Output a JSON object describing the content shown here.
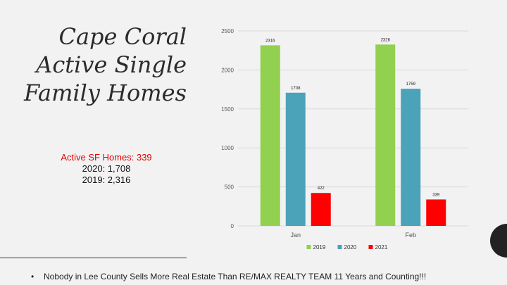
{
  "slide": {
    "title_lines": [
      "Cape Coral",
      "Active Single",
      "Family Homes"
    ],
    "stats": {
      "active_label": "Active SF Homes: 339",
      "line_2020": "2020: 1,708",
      "line_2019": "2019: 2,316"
    },
    "footer_bullet": "•",
    "footer": "Nobody in Lee County Sells More Real Estate Than RE/MAX REALTY  TEAM  11 Years and Counting!!!"
  },
  "chart_data": {
    "type": "bar",
    "categories": [
      "Jan",
      "Feb"
    ],
    "series": [
      {
        "name": "2019",
        "color": "#92d050",
        "values": [
          2316,
          2326
        ]
      },
      {
        "name": "2020",
        "color": "#4aa3b8",
        "values": [
          1708,
          1759
        ]
      },
      {
        "name": "2021",
        "color": "#ff0000",
        "values": [
          422,
          339
        ]
      }
    ],
    "ylim": [
      0,
      2500
    ],
    "yticks": [
      0,
      500,
      1000,
      1500,
      2000,
      2500
    ],
    "grid": true,
    "legend": "bottom",
    "title": "",
    "xlabel": "",
    "ylabel": ""
  }
}
